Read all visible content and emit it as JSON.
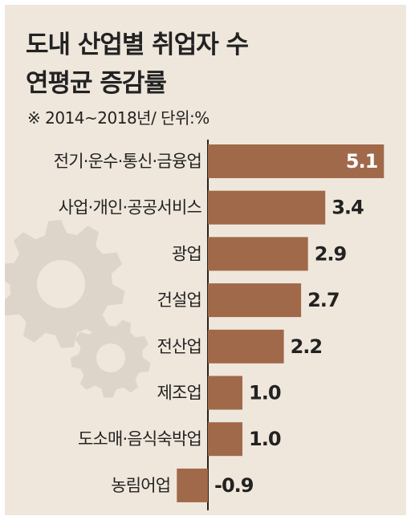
{
  "colors": {
    "background": "#efe7dc",
    "bar": "#a0694a",
    "gear": "#ddd5c9",
    "axis": "#222222",
    "text": "#222222"
  },
  "decor": {
    "icon": "gear-icon"
  },
  "chart_data": {
    "type": "bar",
    "orientation": "horizontal",
    "title": "도내 산업별 취업자 수 연평균 증감률",
    "title_lines": [
      "도내 산업별 취업자 수",
      "연평균 증감률"
    ],
    "subtitle": "※ 2014~2018년/ 단위:%",
    "categories": [
      "전기·운수·통신·금융업",
      "사업·개인·공공서비스",
      "광업",
      "건설업",
      "전산업",
      "제조업",
      "도소매·음식숙박업",
      "농림어업"
    ],
    "values": [
      5.1,
      3.4,
      2.9,
      2.7,
      2.2,
      1.0,
      1.0,
      -0.9
    ],
    "value_labels": [
      "5.1",
      "3.4",
      "2.9",
      "2.7",
      "2.2",
      "1.0",
      "1.0",
      "-0.9"
    ],
    "xlim": [
      -1.2,
      5.3
    ],
    "grid": false,
    "legend": "none"
  }
}
